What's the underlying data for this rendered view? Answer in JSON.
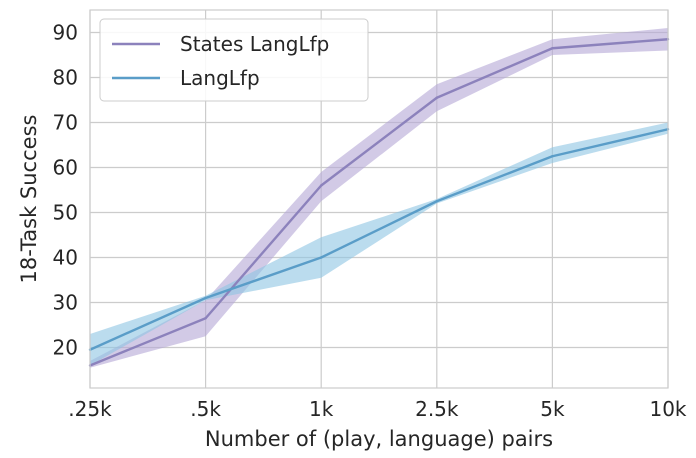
{
  "chart_data": {
    "type": "line",
    "categories": [
      ".25k",
      ".5k",
      "1k",
      "2.5k",
      "5k",
      "10k"
    ],
    "xlabel": "Number of (play, language) pairs",
    "ylabel": "18-Task Success",
    "ylim": [
      11,
      95
    ],
    "yticks": [
      20,
      30,
      40,
      50,
      60,
      70,
      80,
      90
    ],
    "grid": true,
    "legend_position": "top-left",
    "series": [
      {
        "name": "States LangLfp",
        "color": "#8c82bc",
        "band_color": "#b4a7d6",
        "values": [
          16,
          26.5,
          56,
          75.5,
          86.5,
          88.5
        ],
        "lower": [
          15.5,
          22.5,
          52.5,
          72.5,
          85,
          86
        ],
        "upper": [
          17,
          30.5,
          59,
          78.5,
          88.5,
          91
        ]
      },
      {
        "name": "LangLfp",
        "color": "#5a9dc8",
        "band_color": "#8ec5e3",
        "values": [
          19.5,
          31,
          40,
          52.5,
          62.5,
          68.5
        ],
        "lower": [
          16,
          30.5,
          35.5,
          52,
          61,
          67.5
        ],
        "upper": [
          23,
          31.5,
          44.5,
          53,
          64.5,
          70
        ]
      }
    ]
  }
}
